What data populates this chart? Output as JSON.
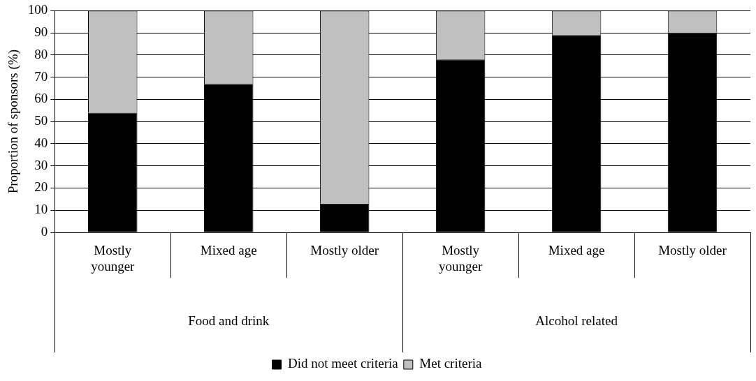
{
  "chart_data": {
    "type": "bar",
    "stacked": true,
    "ylabel": "Proportion of sponsors (%)",
    "categories": [
      "Mostly younger",
      "Mixed age",
      "Mostly older",
      "Mostly younger",
      "Mixed age",
      "Mostly older"
    ],
    "series": [
      {
        "name": "Did not meet criteria",
        "color": "#000000",
        "values": [
          54,
          67,
          13,
          78,
          89,
          90
        ]
      },
      {
        "name": "Met criteria",
        "color": "#c0c0c0",
        "values": [
          46,
          33,
          87,
          22,
          11,
          10
        ]
      }
    ],
    "ylim": [
      0,
      100
    ],
    "yticks": [
      0,
      10,
      20,
      30,
      40,
      50,
      60,
      70,
      80,
      90,
      100
    ],
    "grid": "y",
    "legend": "bottom",
    "annotations": [
      "Food and drink",
      "Alcohol related"
    ]
  }
}
